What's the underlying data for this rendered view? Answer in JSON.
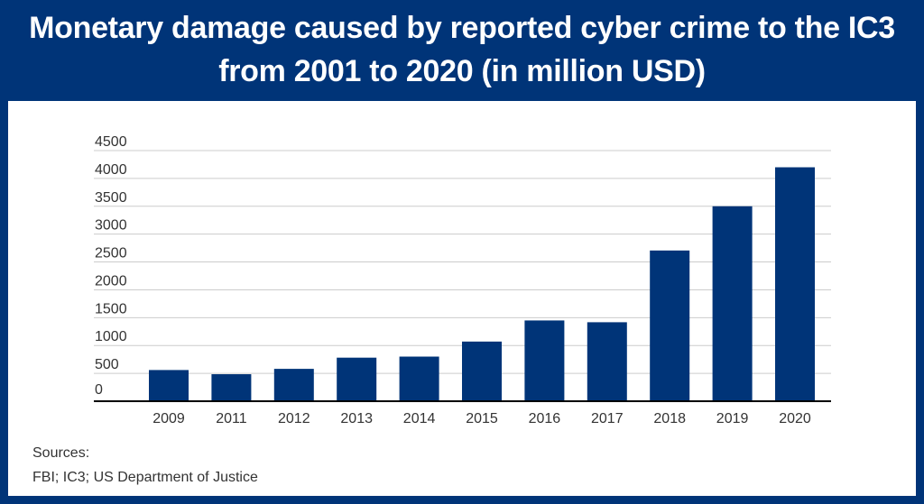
{
  "title_lines": [
    "Monetary damage caused by reported cyber crime to the IC3",
    "from 2001 to 2020 (in million USD)"
  ],
  "colors": {
    "frame": "#003478",
    "bar": "#003478",
    "grid": "#cccccc",
    "axis": "#000000",
    "text": "#333333"
  },
  "chart_data": {
    "type": "bar",
    "title": "Monetary damage caused by reported cyber crime to the IC3 from 2001 to 2020 (in million USD)",
    "categories": [
      "2009",
      "2011",
      "2012",
      "2013",
      "2014",
      "2015",
      "2016",
      "2017",
      "2018",
      "2019",
      "2020"
    ],
    "values": [
      560,
      485,
      581,
      782,
      801,
      1071,
      1450,
      1418,
      2706,
      3500,
      4200
    ],
    "xlabel": "",
    "ylabel": "",
    "ylim": [
      0,
      4500
    ],
    "yticks": [
      0,
      500,
      1000,
      1500,
      2000,
      2500,
      3000,
      3500,
      4000,
      4500
    ],
    "grid": true,
    "legend": "none"
  },
  "sources": {
    "label": "Sources:",
    "text": "FBI; IC3; US Department of Justice"
  }
}
